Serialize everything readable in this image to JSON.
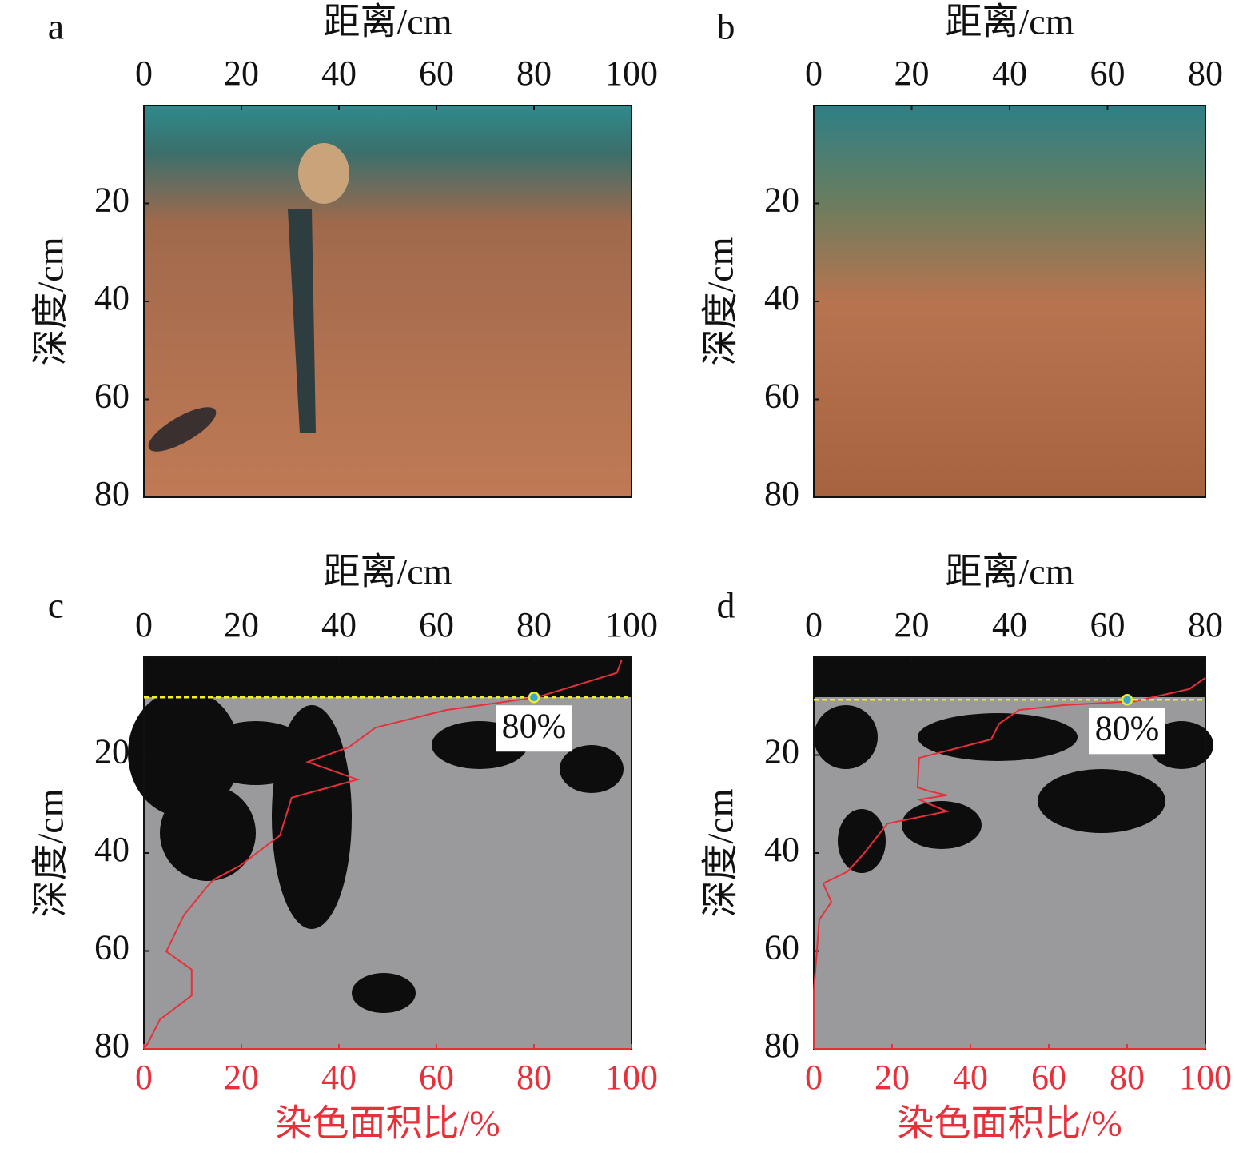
{
  "chart_data": [
    {
      "type": "image",
      "label": "a",
      "xlabel": "距离/cm",
      "ylabel": "深度/cm",
      "xlim": [
        0,
        100
      ],
      "xticks": [
        0,
        20,
        40,
        60,
        80,
        100
      ],
      "ylim": [
        0,
        80
      ],
      "yticks": [
        20,
        40,
        60,
        80
      ]
    },
    {
      "type": "image",
      "label": "b",
      "xlabel": "距离/cm",
      "ylabel": "深度/cm",
      "xlim": [
        0,
        80
      ],
      "xticks": [
        0,
        20,
        40,
        60,
        80
      ],
      "ylim": [
        0,
        80
      ],
      "yticks": [
        20,
        40,
        60,
        80
      ]
    },
    {
      "type": "line",
      "label": "c",
      "xlabel": "距离/cm",
      "ylabel": "深度/cm",
      "xlim": [
        0,
        100
      ],
      "xticks": [
        0,
        20,
        40,
        60,
        80,
        100
      ],
      "ylim": [
        0,
        80
      ],
      "yticks": [
        20,
        40,
        60,
        80
      ],
      "x2label": "染色面积比/%",
      "x2lim": [
        0,
        100
      ],
      "x2ticks": [
        0,
        20,
        40,
        60,
        80,
        100
      ],
      "color": "#e8303a",
      "coverage": [
        98,
        97,
        93.4,
        80.6,
        62,
        47.5,
        42,
        33.6,
        43.8,
        30.3,
        27.9,
        19.7,
        14.4,
        13.1,
        8.2,
        4.6,
        9.8,
        9.8,
        3.3,
        0.8,
        0
      ],
      "depth": [
        0.5,
        3.2,
        4.3,
        8.2,
        10.8,
        14.4,
        18.4,
        21.4,
        25,
        28.7,
        36.4,
        42.6,
        45.4,
        46.7,
        52.7,
        60.1,
        63.8,
        69.1,
        74,
        78.9,
        80
      ],
      "marker_coverage": 80,
      "marker_depth": 8.2,
      "annotation": "80%"
    },
    {
      "type": "line",
      "label": "d",
      "xlabel": "距离/cm",
      "ylabel": "深度/cm",
      "xlim": [
        0,
        80
      ],
      "xticks": [
        0,
        20,
        40,
        60,
        80
      ],
      "ylim": [
        0,
        80
      ],
      "yticks": [
        20,
        40,
        60,
        80
      ],
      "x2label": "染色面积比/%",
      "x2lim": [
        0,
        100
      ],
      "x2ticks": [
        0,
        20,
        40,
        60,
        80,
        100
      ],
      "color": "#e8303a",
      "coverage": [
        100,
        95.9,
        82,
        63.7,
        52.4,
        47.3,
        45.3,
        26.9,
        26.5,
        29.6,
        34,
        26.9,
        34,
        18.8,
        12.7,
        8.6,
        4.5,
        2.4,
        4.5,
        1.4,
        0.8,
        0,
        0
      ],
      "depth": [
        4.2,
        6.5,
        9,
        9.8,
        10.8,
        13.6,
        16.8,
        20.6,
        26.6,
        27.4,
        28.2,
        29.1,
        31.5,
        34,
        40.2,
        43.8,
        45.4,
        46.2,
        50,
        53.6,
        60,
        68.2,
        80
      ],
      "marker_coverage": 80,
      "marker_depth": 8.7,
      "annotation": "80%"
    }
  ]
}
